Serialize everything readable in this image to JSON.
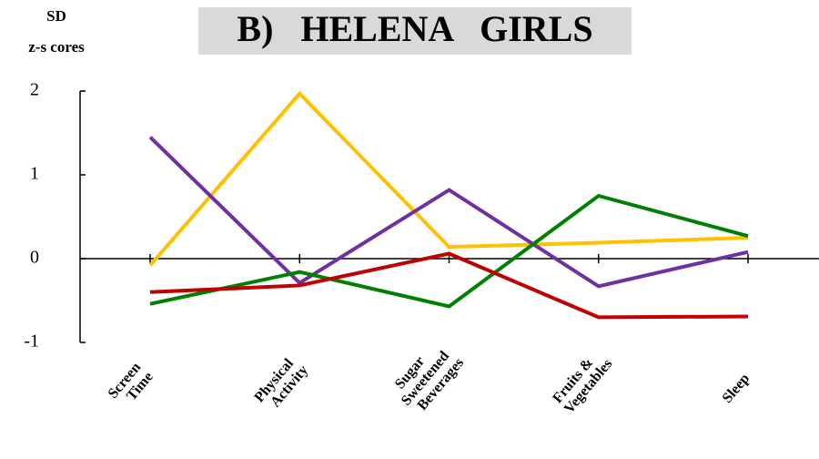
{
  "chart_data": {
    "type": "line",
    "title": "B)   HELENA   GIRLS",
    "ylabel": [
      "SD",
      "z-s cores"
    ],
    "categories": [
      [
        "Screen",
        "Time"
      ],
      [
        "Physical",
        "Activity"
      ],
      [
        "Sugar",
        "Sweetened",
        "Beverages"
      ],
      [
        "Fruits &",
        "Vegetables"
      ],
      [
        "Sleep"
      ]
    ],
    "series": [
      {
        "color": "#ffc000",
        "values": [
          -0.08,
          1.97,
          0.14,
          0.19,
          0.25
        ]
      },
      {
        "color": "#7030a0",
        "values": [
          1.45,
          -0.29,
          0.82,
          -0.33,
          0.08
        ]
      },
      {
        "color": "#008000",
        "values": [
          -0.54,
          -0.16,
          -0.57,
          0.75,
          0.27
        ]
      },
      {
        "color": "#c00000",
        "values": [
          -0.4,
          -0.32,
          0.06,
          -0.7,
          -0.69
        ]
      }
    ],
    "ylim": [
      -1,
      2
    ],
    "yticks": [
      -1,
      0,
      1,
      2
    ]
  }
}
